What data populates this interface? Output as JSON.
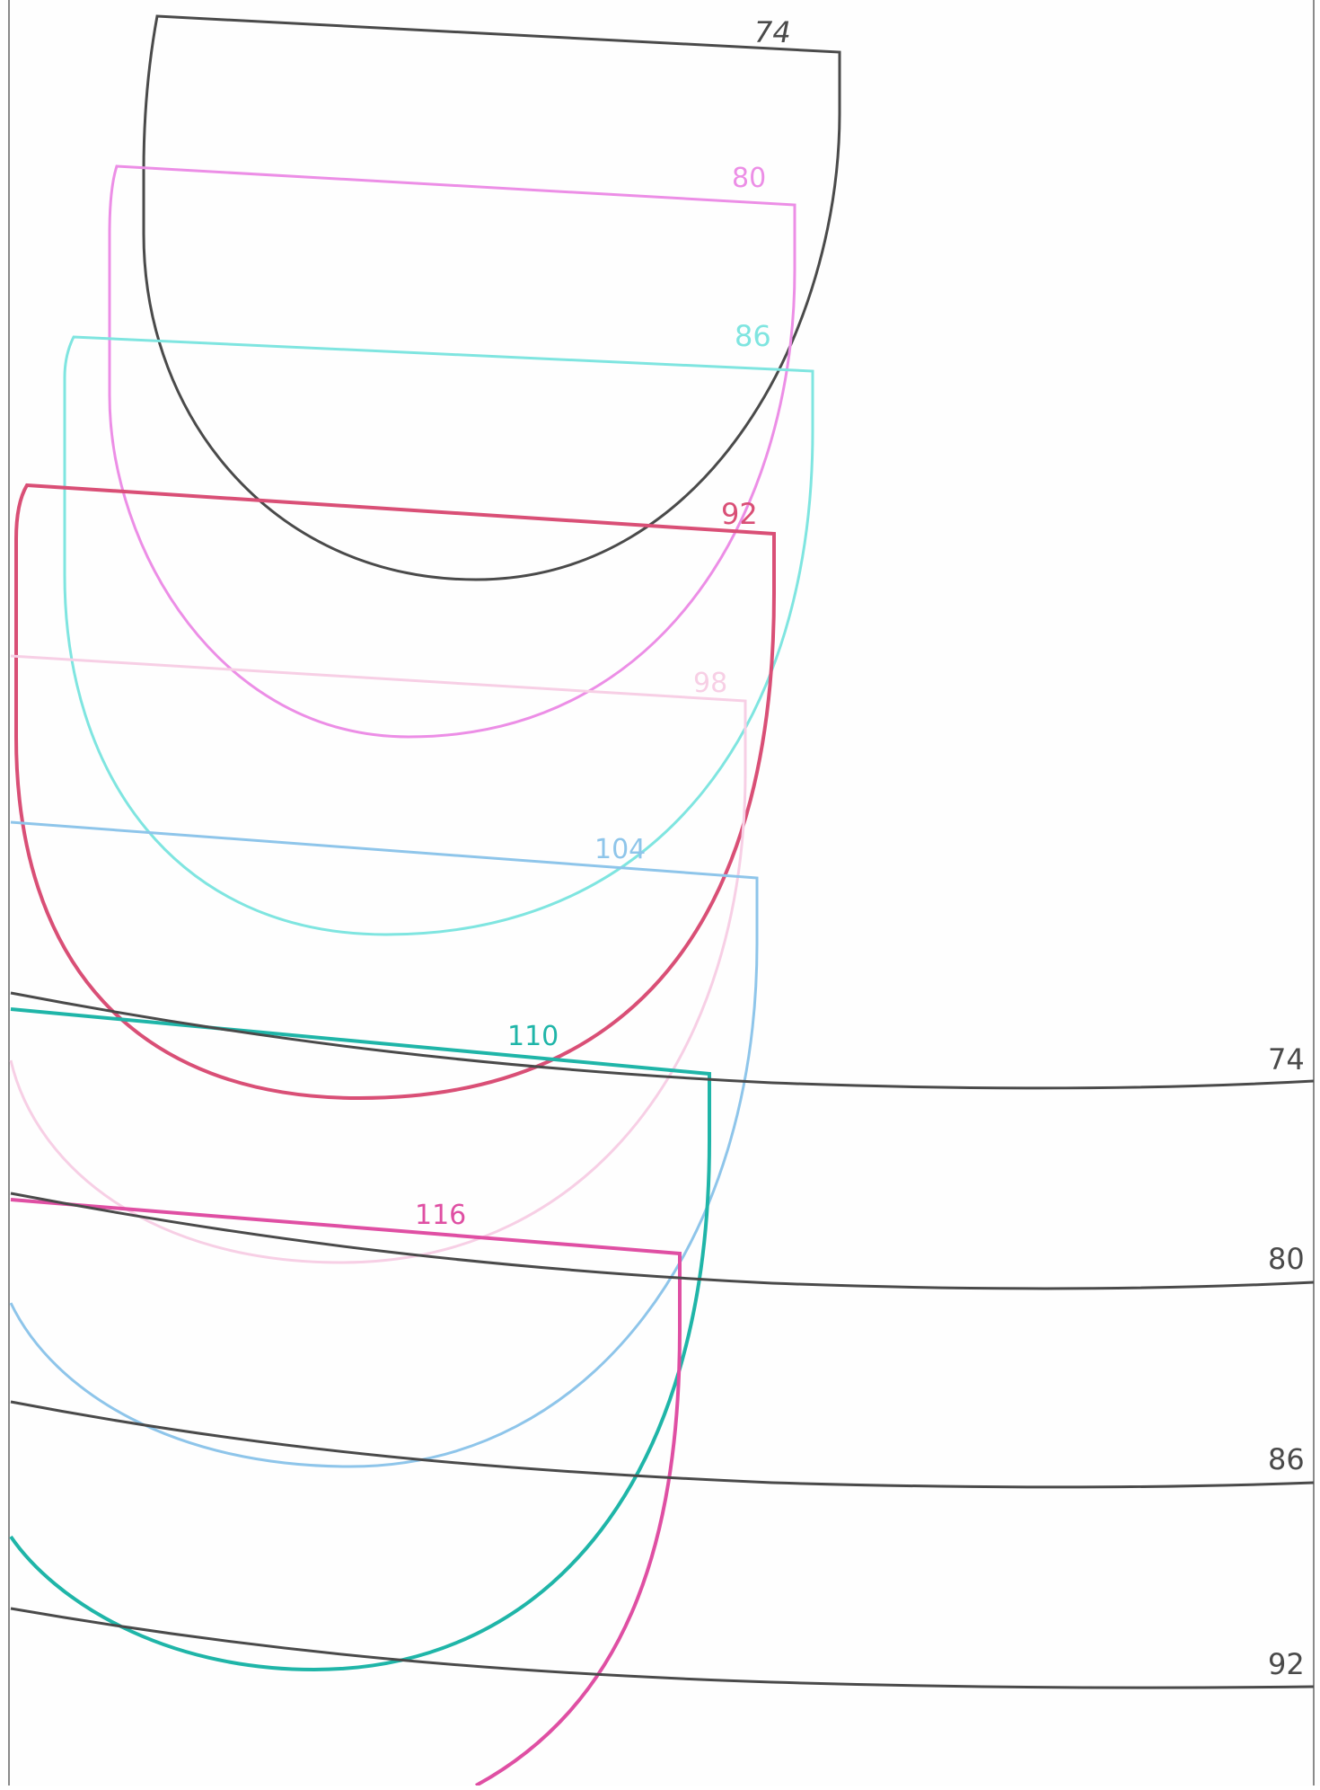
{
  "diagram": {
    "colors": {
      "paper": "#fefefe",
      "border": "#8a8a8a",
      "black": "#4a4a4a",
      "pink": "#ec8ee6",
      "aqua": "#7fe5e0",
      "red": "#d94f76",
      "light_pink": "#f7cfe5",
      "light_blue": "#8ec5ea",
      "teal": "#1fb5a8",
      "magenta": "#df4fa3"
    },
    "piece_labels": [
      "74",
      "80",
      "86",
      "92",
      "98",
      "104",
      "110",
      "116"
    ],
    "band_labels": [
      "74",
      "80",
      "86",
      "92"
    ]
  }
}
